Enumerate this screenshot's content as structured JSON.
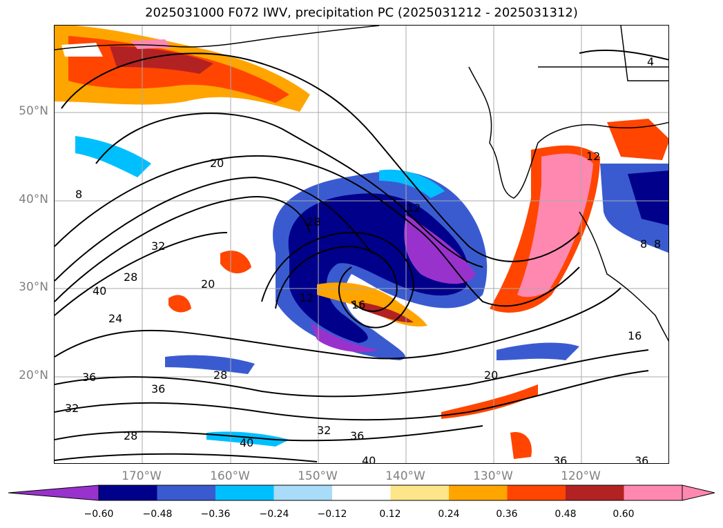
{
  "title": "2025031000 F072 IWV, precipitation PC (2025031212 - 2025031312)",
  "lat_labels": [
    "50°N",
    "40°N",
    "30°N",
    "20°N"
  ],
  "lon_labels": [
    "170°W",
    "160°W",
    "150°W",
    "140°W",
    "130°W",
    "120°W"
  ],
  "contour_labels": [
    "4",
    "8",
    "12",
    "12",
    "12",
    "16",
    "20",
    "20",
    "20",
    "24",
    "28",
    "28",
    "28",
    "28",
    "32",
    "32",
    "32",
    "36",
    "36",
    "36",
    "36",
    "36",
    "40",
    "40",
    "40",
    "16",
    "8",
    "8"
  ],
  "colorbar": {
    "ticks": [
      "−0.60",
      "−0.48",
      "−0.36",
      "−0.24",
      "−0.12",
      "0.12",
      "0.24",
      "0.36",
      "0.48",
      "0.60"
    ],
    "colors": [
      "#9932cc",
      "#00008b",
      "#3a5bd0",
      "#00bfff",
      "#a8dcf8",
      "#ffffff",
      "#fde68a",
      "#ffa500",
      "#ff4500",
      "#b22222",
      "#ff88b0",
      "#ff88b0"
    ]
  },
  "legend_colors": {
    "negative_strong": "#9932cc",
    "negative": "#00008b",
    "positive": "#ff4500",
    "positive_strong": "#ff88b0"
  }
}
